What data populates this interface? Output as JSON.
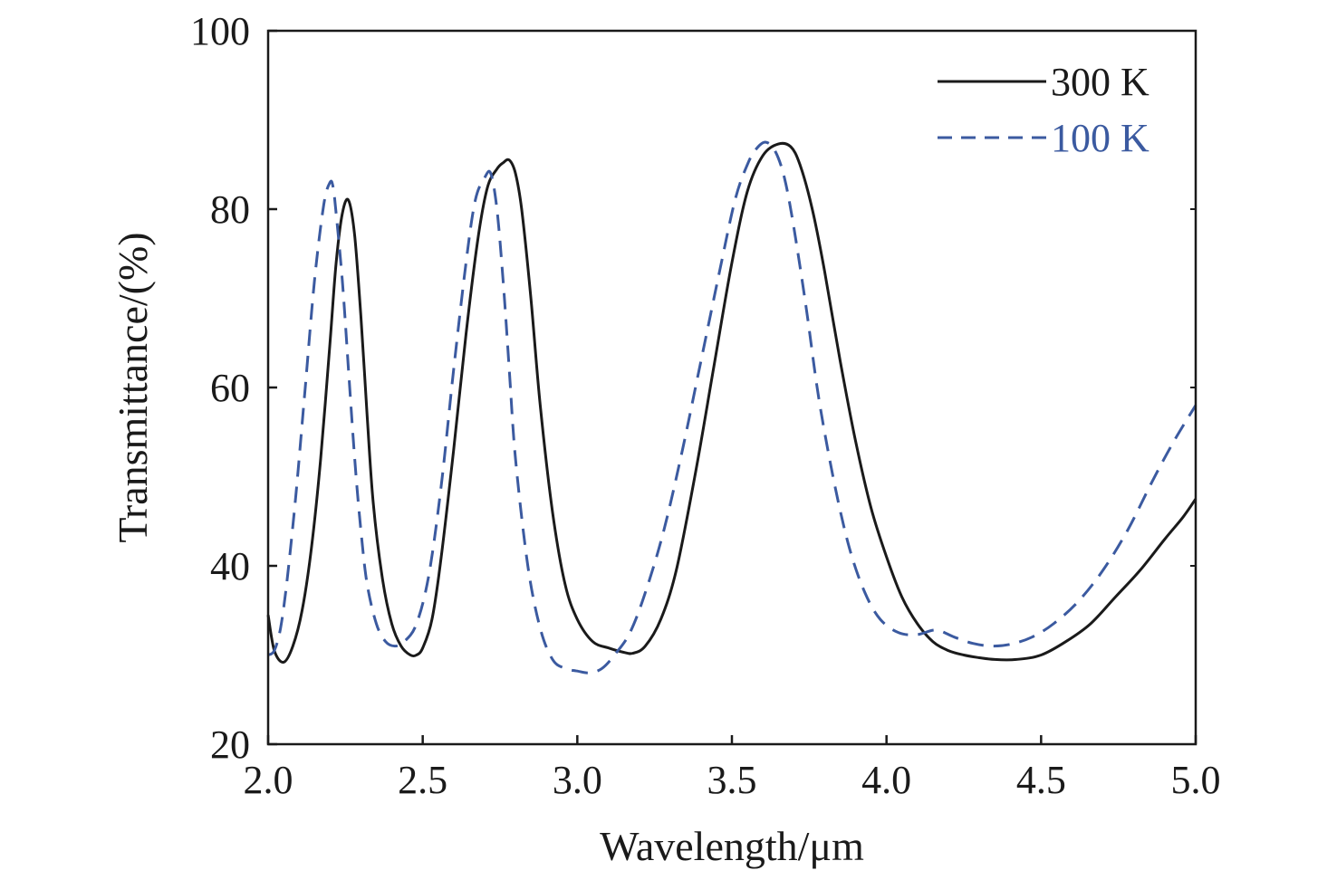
{
  "chart_data": {
    "type": "line",
    "xlabel": "Wavelength/μm",
    "ylabel": "Transmittance/(%)",
    "xlim": [
      2.0,
      5.0
    ],
    "ylim": [
      20,
      100
    ],
    "xticks": [
      2.0,
      2.5,
      3.0,
      3.5,
      4.0,
      4.5,
      5.0
    ],
    "xtick_labels": [
      "2.0",
      "2.5",
      "3.0",
      "3.5",
      "4.0",
      "4.5",
      "5.0"
    ],
    "yticks": [
      20,
      40,
      60,
      80,
      100
    ],
    "ytick_labels": [
      "20",
      "40",
      "60",
      "80",
      "100"
    ],
    "grid": false,
    "legend_position": "top-right",
    "series": [
      {
        "name": "300 K",
        "color": "#1a1a1a",
        "dash": "solid",
        "x": [
          2.0,
          2.02,
          2.05,
          2.08,
          2.11,
          2.14,
          2.17,
          2.2,
          2.22,
          2.24,
          2.26,
          2.28,
          2.3,
          2.32,
          2.34,
          2.37,
          2.4,
          2.43,
          2.46,
          2.48,
          2.5,
          2.53,
          2.56,
          2.6,
          2.64,
          2.68,
          2.71,
          2.74,
          2.76,
          2.78,
          2.8,
          2.82,
          2.85,
          2.88,
          2.92,
          2.96,
          3.0,
          3.05,
          3.1,
          3.15,
          3.18,
          3.22,
          3.27,
          3.32,
          3.38,
          3.44,
          3.5,
          3.55,
          3.6,
          3.65,
          3.69,
          3.72,
          3.76,
          3.8,
          3.85,
          3.9,
          3.95,
          4.0,
          4.05,
          4.1,
          4.15,
          4.2,
          4.25,
          4.3,
          4.35,
          4.42,
          4.5,
          4.58,
          4.66,
          4.74,
          4.82,
          4.9,
          4.96,
          5.0
        ],
        "y": [
          34.5,
          30.5,
          29.2,
          31.0,
          35.0,
          42.0,
          52.0,
          65.0,
          74.0,
          79.5,
          81.0,
          77.0,
          68.0,
          57.0,
          47.0,
          38.5,
          33.5,
          31.0,
          30.0,
          30.0,
          30.8,
          34.0,
          41.0,
          53.0,
          66.0,
          77.0,
          82.5,
          84.5,
          85.2,
          85.5,
          84.0,
          80.0,
          70.0,
          58.0,
          46.0,
          38.0,
          34.0,
          31.5,
          30.8,
          30.3,
          30.2,
          31.0,
          34.0,
          39.5,
          50.0,
          62.0,
          74.0,
          82.0,
          86.0,
          87.3,
          87.0,
          85.0,
          80.0,
          73.0,
          63.0,
          54.0,
          46.5,
          41.0,
          36.5,
          33.5,
          31.5,
          30.5,
          30.0,
          29.7,
          29.5,
          29.5,
          30.0,
          31.5,
          33.5,
          36.5,
          39.5,
          43.0,
          45.5,
          47.5
        ]
      },
      {
        "name": "100 K",
        "color": "#3b5aa0",
        "dash": "dashed",
        "x": [
          2.0,
          2.02,
          2.04,
          2.06,
          2.09,
          2.12,
          2.15,
          2.18,
          2.2,
          2.21,
          2.22,
          2.24,
          2.26,
          2.28,
          2.3,
          2.32,
          2.35,
          2.38,
          2.41,
          2.44,
          2.48,
          2.52,
          2.56,
          2.6,
          2.64,
          2.67,
          2.7,
          2.72,
          2.74,
          2.76,
          2.78,
          2.8,
          2.84,
          2.88,
          2.92,
          2.96,
          3.0,
          3.04,
          3.08,
          3.12,
          3.17,
          3.22,
          3.28,
          3.34,
          3.4,
          3.46,
          3.51,
          3.55,
          3.58,
          3.61,
          3.64,
          3.67,
          3.7,
          3.74,
          3.78,
          3.83,
          3.88,
          3.93,
          3.98,
          4.04,
          4.1,
          4.16,
          4.22,
          4.28,
          4.34,
          4.4,
          4.47,
          4.54,
          4.62,
          4.7,
          4.78,
          4.86,
          4.93,
          5.0
        ],
        "y": [
          30.0,
          30.5,
          33.0,
          38.0,
          48.0,
          60.0,
          72.0,
          80.5,
          83.0,
          82.5,
          79.5,
          72.0,
          62.0,
          52.0,
          44.0,
          38.0,
          33.5,
          31.5,
          31.0,
          31.5,
          33.5,
          39.0,
          49.0,
          62.0,
          74.0,
          81.0,
          83.5,
          84.0,
          80.0,
          72.0,
          62.0,
          52.0,
          40.0,
          33.0,
          29.5,
          28.5,
          28.2,
          28.0,
          28.5,
          30.0,
          32.5,
          37.0,
          44.0,
          53.0,
          63.0,
          73.0,
          81.0,
          85.0,
          86.8,
          87.5,
          86.5,
          83.5,
          78.0,
          69.0,
          59.0,
          49.5,
          42.0,
          37.0,
          34.0,
          32.5,
          32.3,
          32.8,
          32.0,
          31.3,
          31.0,
          31.2,
          32.0,
          33.5,
          36.0,
          39.5,
          44.0,
          49.5,
          54.0,
          58.0
        ]
      }
    ]
  }
}
